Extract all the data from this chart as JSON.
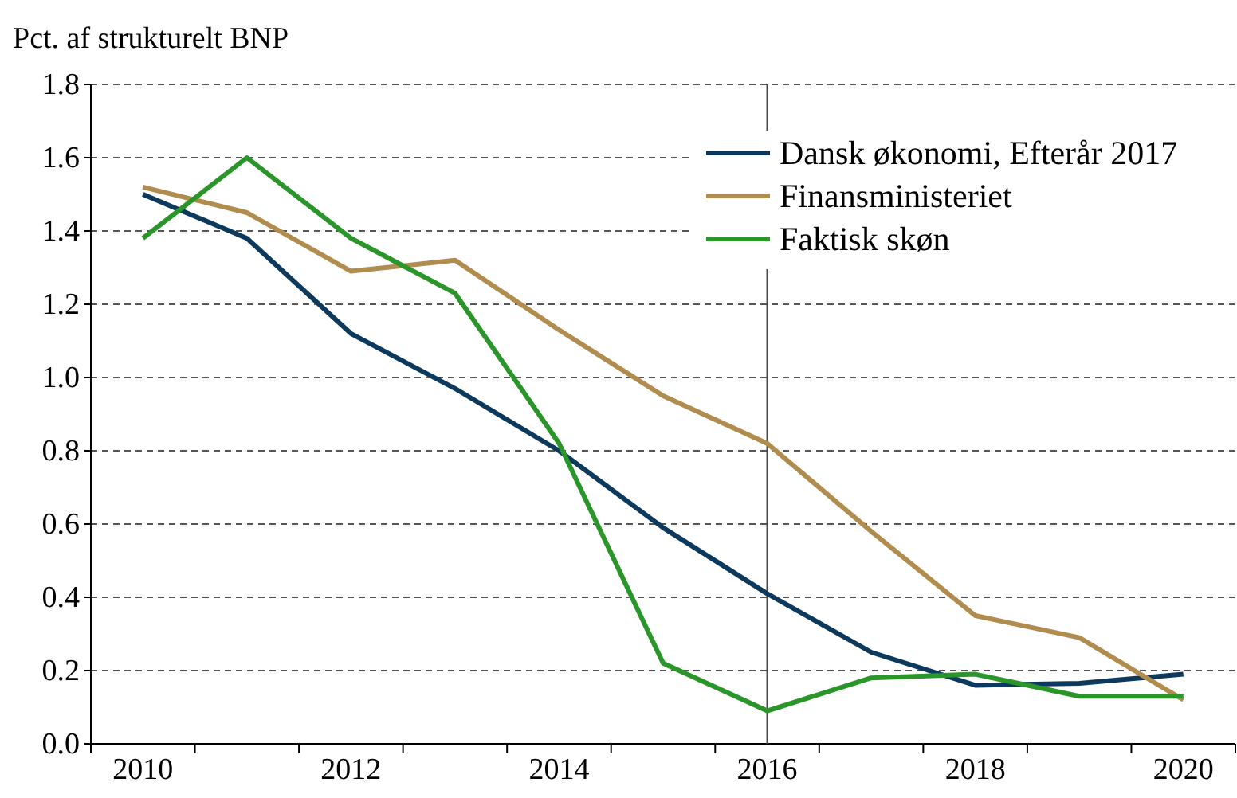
{
  "chart_data": {
    "type": "line",
    "ylabel": "Pct. af strukturelt BNP",
    "categories": [
      "2010",
      null,
      "2012",
      null,
      "2014",
      null,
      "2016",
      null,
      "2018",
      null,
      "2020"
    ],
    "series": [
      {
        "name": "Dansk økonomi, Efterår 2017",
        "color": "#0d3a5c",
        "values": [
          1.5,
          1.38,
          1.12,
          0.97,
          0.8,
          0.59,
          0.41,
          0.25,
          0.16,
          0.165,
          0.19
        ]
      },
      {
        "name": "Finansministeriet",
        "color": "#b08d4e",
        "values": [
          1.52,
          1.45,
          1.29,
          1.32,
          1.13,
          0.95,
          0.82,
          0.58,
          0.35,
          0.29,
          0.12
        ]
      },
      {
        "name": "Faktisk skøn",
        "color": "#2a962a",
        "values": [
          1.38,
          1.6,
          1.38,
          1.23,
          0.82,
          0.22,
          0.09,
          0.18,
          0.19,
          0.13,
          0.13
        ]
      }
    ],
    "ylim": [
      0,
      1.8
    ],
    "yticks": [
      {
        "value": 0,
        "label": "0.0"
      },
      0.2,
      0.4,
      0.6,
      0.8,
      {
        "value": 1,
        "label": "1.0"
      },
      1.2,
      1.4,
      1.6,
      1.8
    ],
    "grid": "y",
    "legend": "top right",
    "line_style": "solid",
    "ref_lines": [
      {
        "axis": "x",
        "value": "2016",
        "color": "#444444"
      }
    ]
  }
}
